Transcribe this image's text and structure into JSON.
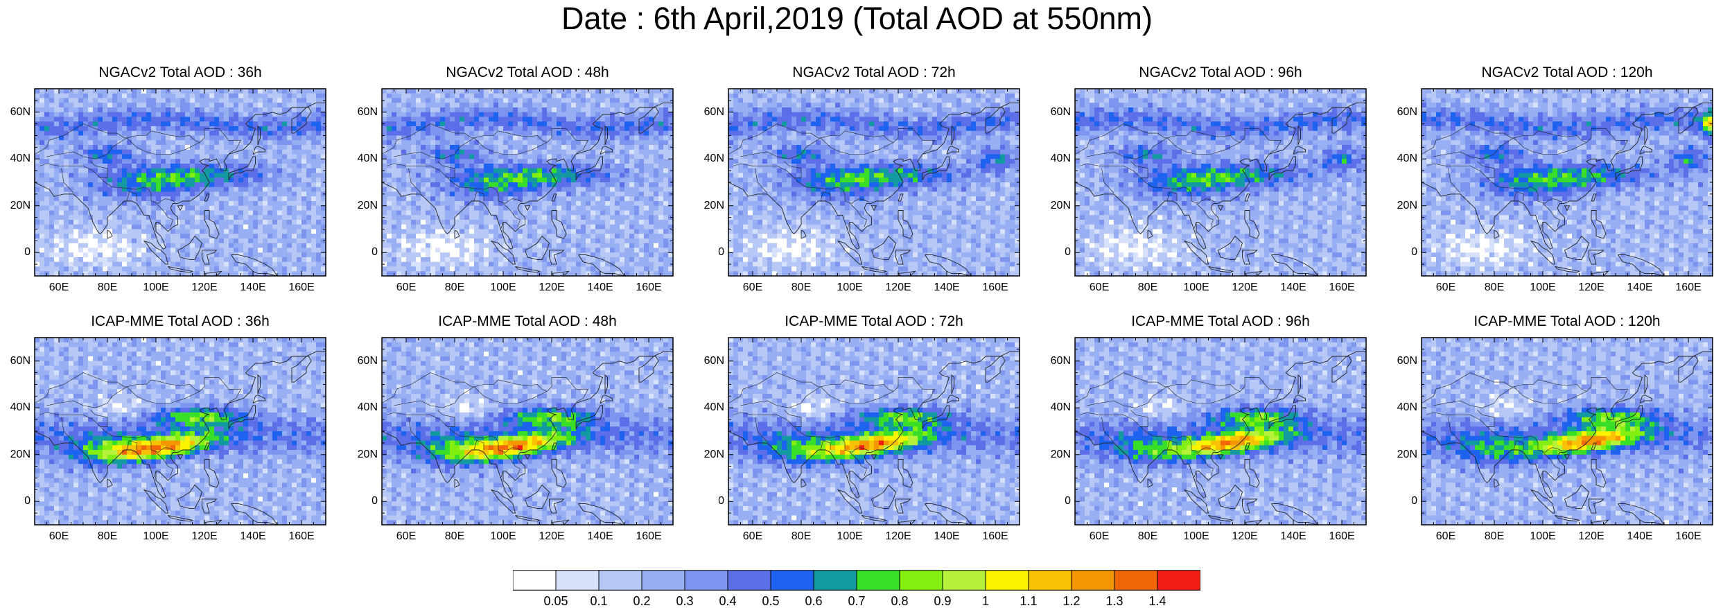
{
  "title": "Date : 6th April,2019 (Total AOD at 550nm)",
  "panels": [
    {
      "title": "NGACv2 Total AOD : 36h",
      "model": "NGACv2",
      "hour": 36
    },
    {
      "title": "NGACv2 Total AOD : 48h",
      "model": "NGACv2",
      "hour": 48
    },
    {
      "title": "NGACv2 Total AOD : 72h",
      "model": "NGACv2",
      "hour": 72
    },
    {
      "title": "NGACv2 Total AOD : 96h",
      "model": "NGACv2",
      "hour": 96
    },
    {
      "title": "NGACv2 Total AOD : 120h",
      "model": "NGACv2",
      "hour": 120
    },
    {
      "title": "ICAP-MME Total AOD : 36h",
      "model": "ICAP-MME",
      "hour": 36
    },
    {
      "title": "ICAP-MME Total AOD : 48h",
      "model": "ICAP-MME",
      "hour": 48
    },
    {
      "title": "ICAP-MME Total AOD : 72h",
      "model": "ICAP-MME",
      "hour": 72
    },
    {
      "title": "ICAP-MME Total AOD : 96h",
      "model": "ICAP-MME",
      "hour": 96
    },
    {
      "title": "ICAP-MME Total AOD : 120h",
      "model": "ICAP-MME",
      "hour": 120
    }
  ],
  "map": {
    "lon_range": [
      50,
      170
    ],
    "lat_range": [
      -10,
      70
    ],
    "lat_ticks": [
      {
        "value": 0,
        "label": "0"
      },
      {
        "value": 20,
        "label": "20N"
      },
      {
        "value": 40,
        "label": "40N"
      },
      {
        "value": 60,
        "label": "60N"
      }
    ],
    "lon_ticks": [
      {
        "value": 60,
        "label": "60E"
      },
      {
        "value": 80,
        "label": "80E"
      },
      {
        "value": 100,
        "label": "100E"
      },
      {
        "value": 120,
        "label": "120E"
      },
      {
        "value": 140,
        "label": "140E"
      },
      {
        "value": 160,
        "label": "160E"
      }
    ]
  },
  "colorbar": {
    "labels": [
      "0.05",
      "0.1",
      "0.2",
      "0.3",
      "0.4",
      "0.5",
      "0.6",
      "0.7",
      "0.8",
      "0.9",
      "1",
      "1.1",
      "1.2",
      "1.3",
      "1.4"
    ],
    "colors": [
      "#ffffff",
      "#d7e1fb",
      "#b7c7f6",
      "#98aff3",
      "#7d95ef",
      "#5c6ee8",
      "#1e62f0",
      "#139aa0",
      "#38de27",
      "#82ef10",
      "#b6f23c",
      "#fbf200",
      "#f9c204",
      "#f49600",
      "#f2660a",
      "#f01d14"
    ]
  }
}
